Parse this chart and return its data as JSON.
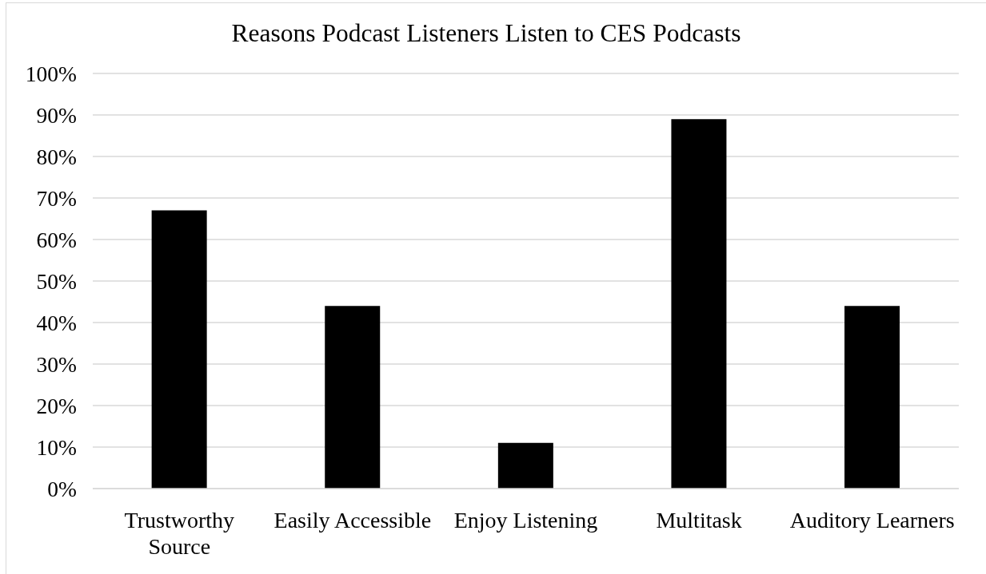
{
  "chart_data": {
    "type": "bar",
    "title": "Reasons Podcast Listeners Listen to CES Podcasts",
    "categories": [
      "Trustworthy Source",
      "Easily Accessible",
      "Enjoy Listening",
      "Multitask",
      "Auditory Learners"
    ],
    "values": [
      67,
      44,
      11,
      89,
      44
    ],
    "color": "#000000",
    "ylim": [
      0,
      100
    ],
    "yticks": [
      {
        "value": 0,
        "label": "0%"
      },
      {
        "value": 10,
        "label": "10%"
      },
      {
        "value": 20,
        "label": "20%"
      },
      {
        "value": 30,
        "label": "30%"
      },
      {
        "value": 40,
        "label": "40%"
      },
      {
        "value": 50,
        "label": "50%"
      },
      {
        "value": 60,
        "label": "60%"
      },
      {
        "value": 70,
        "label": "70%"
      },
      {
        "value": 80,
        "label": "80%"
      },
      {
        "value": 90,
        "label": "90%"
      },
      {
        "value": 100,
        "label": "100%"
      }
    ],
    "grid": "y"
  }
}
